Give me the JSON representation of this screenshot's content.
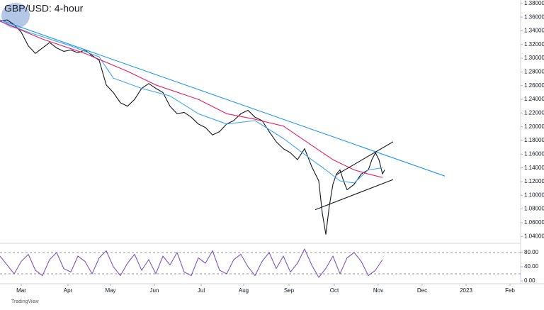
{
  "chart_data": [
    {
      "type": "line",
      "title": "GBP/USD: 4-hour",
      "xlim": [
        0,
        367.5
      ],
      "xticks": [
        {
          "value": 15,
          "label": "Mar"
        },
        {
          "value": 48,
          "label": "Apr"
        },
        {
          "value": 78,
          "label": "May"
        },
        {
          "value": 109,
          "label": "Jun"
        },
        {
          "value": 142,
          "label": "Jul"
        },
        {
          "value": 172,
          "label": "Aug"
        },
        {
          "value": 204,
          "label": "Sep"
        },
        {
          "value": 236,
          "label": "Oct"
        },
        {
          "value": 267,
          "label": "Nov"
        },
        {
          "value": 298,
          "label": "Dec"
        },
        {
          "value": 329,
          "label": "2023"
        },
        {
          "value": 360,
          "label": "Feb"
        }
      ],
      "ylim": [
        1.033,
        1.385
      ],
      "yticks": [
        {
          "value": 1.04,
          "label": "1.04000"
        },
        {
          "value": 1.06,
          "label": "1.06000"
        },
        {
          "value": 1.08,
          "label": "1.08000"
        },
        {
          "value": 1.1,
          "label": "1.10000"
        },
        {
          "value": 1.12,
          "label": "1.12000"
        },
        {
          "value": 1.14,
          "label": "1.14000"
        },
        {
          "value": 1.16,
          "label": "1.16000"
        },
        {
          "value": 1.18,
          "label": "1.18000"
        },
        {
          "value": 1.2,
          "label": "1.20000"
        },
        {
          "value": 1.22,
          "label": "1.22000"
        },
        {
          "value": 1.24,
          "label": "1.24000"
        },
        {
          "value": 1.26,
          "label": "1.26000"
        },
        {
          "value": 1.28,
          "label": "1.28000"
        },
        {
          "value": 1.3,
          "label": "1.30000"
        },
        {
          "value": 1.32,
          "label": "1.32000"
        },
        {
          "value": 1.34,
          "label": "1.34000"
        },
        {
          "value": 1.36,
          "label": "1.36000"
        },
        {
          "value": 1.38,
          "label": "1.38000"
        }
      ],
      "series": [
        {
          "color": "#131722",
          "x": [
            0,
            5,
            10,
            15,
            20,
            25,
            30,
            35,
            40,
            45,
            50,
            55,
            60,
            65,
            70,
            75,
            80,
            85,
            90,
            95,
            100,
            105,
            110,
            115,
            120,
            125,
            130,
            135,
            140,
            145,
            150,
            155,
            160,
            165,
            170,
            175,
            180,
            185,
            190,
            195,
            200,
            205,
            210,
            215,
            220,
            225,
            227.5,
            230,
            232.5,
            235,
            237.5,
            240,
            242.5,
            245,
            250,
            255,
            260,
            262.5,
            265,
            267.5,
            270,
            271.5
          ],
          "values": [
            1.354,
            1.356,
            1.349,
            1.338,
            1.318,
            1.307,
            1.315,
            1.323,
            1.315,
            1.31,
            1.312,
            1.308,
            1.312,
            1.304,
            1.297,
            1.261,
            1.25,
            1.235,
            1.23,
            1.24,
            1.256,
            1.263,
            1.256,
            1.25,
            1.23,
            1.219,
            1.221,
            1.214,
            1.204,
            1.199,
            1.188,
            1.193,
            1.204,
            1.209,
            1.219,
            1.224,
            1.214,
            1.209,
            1.193,
            1.178,
            1.168,
            1.162,
            1.152,
            1.168,
            1.142,
            1.121,
            1.074,
            1.043,
            1.085,
            1.116,
            1.131,
            1.137,
            1.121,
            1.108,
            1.116,
            1.131,
            1.137,
            1.152,
            1.162,
            1.152,
            1.131,
            1.137
          ]
        },
        {
          "color": "#42a5f5",
          "x": [
            0,
            20,
            50,
            70,
            80,
            100,
            120,
            140,
            160,
            180,
            200,
            220,
            230,
            240,
            250,
            260,
            270
          ],
          "values": [
            1.354,
            1.338,
            1.318,
            1.302,
            1.271,
            1.256,
            1.245,
            1.219,
            1.204,
            1.209,
            1.183,
            1.152,
            1.137,
            1.121,
            1.118,
            1.137,
            1.14
          ]
        },
        {
          "color": "#e91e63",
          "x": [
            0,
            30,
            60,
            90,
            110,
            140,
            160,
            180,
            200,
            220,
            235,
            250,
            260,
            270
          ],
          "values": [
            1.354,
            1.328,
            1.307,
            1.281,
            1.261,
            1.24,
            1.219,
            1.211,
            1.201,
            1.173,
            1.152,
            1.137,
            1.131,
            1.126
          ]
        },
        {
          "color": "#2196f3",
          "x": [
            0,
            314
          ],
          "values": [
            1.356,
            1.128
          ]
        },
        {
          "color": "#131722",
          "x": [
            237.5,
            277.5
          ],
          "values": [
            1.13,
            1.178
          ]
        },
        {
          "color": "#131722",
          "x": [
            222.5,
            277.5
          ],
          "values": [
            1.079,
            1.123
          ]
        }
      ]
    },
    {
      "type": "line",
      "xlim": [
        0,
        367.5
      ],
      "ylim": [
        0,
        100
      ],
      "yticks": [
        {
          "value": 0,
          "label": "0.00"
        },
        {
          "value": 40,
          "label": "40.00"
        },
        {
          "value": 80,
          "label": "80.00"
        }
      ],
      "levels": [
        80,
        20
      ],
      "series": [
        {
          "color": "#7e57c2",
          "x": [
            0,
            5,
            10,
            15,
            20,
            25,
            30,
            35,
            40,
            45,
            50,
            55,
            60,
            65,
            70,
            75,
            80,
            85,
            90,
            95,
            100,
            105,
            110,
            115,
            120,
            125,
            130,
            135,
            140,
            145,
            150,
            155,
            160,
            165,
            170,
            175,
            180,
            185,
            190,
            195,
            200,
            205,
            210,
            215,
            220,
            225,
            230,
            235,
            240,
            245,
            250,
            255,
            260,
            265,
            270
          ],
          "values": [
            70,
            45,
            20,
            55,
            75,
            30,
            15,
            60,
            80,
            35,
            25,
            70,
            55,
            20,
            65,
            85,
            40,
            15,
            50,
            75,
            30,
            60,
            20,
            70,
            45,
            80,
            25,
            15,
            65,
            50,
            85,
            30,
            20,
            60,
            75,
            40,
            15,
            55,
            80,
            35,
            70,
            25,
            50,
            90,
            45,
            10,
            35,
            70,
            20,
            65,
            80,
            55,
            15,
            30,
            60
          ]
        }
      ]
    }
  ],
  "footer": "TradingView"
}
